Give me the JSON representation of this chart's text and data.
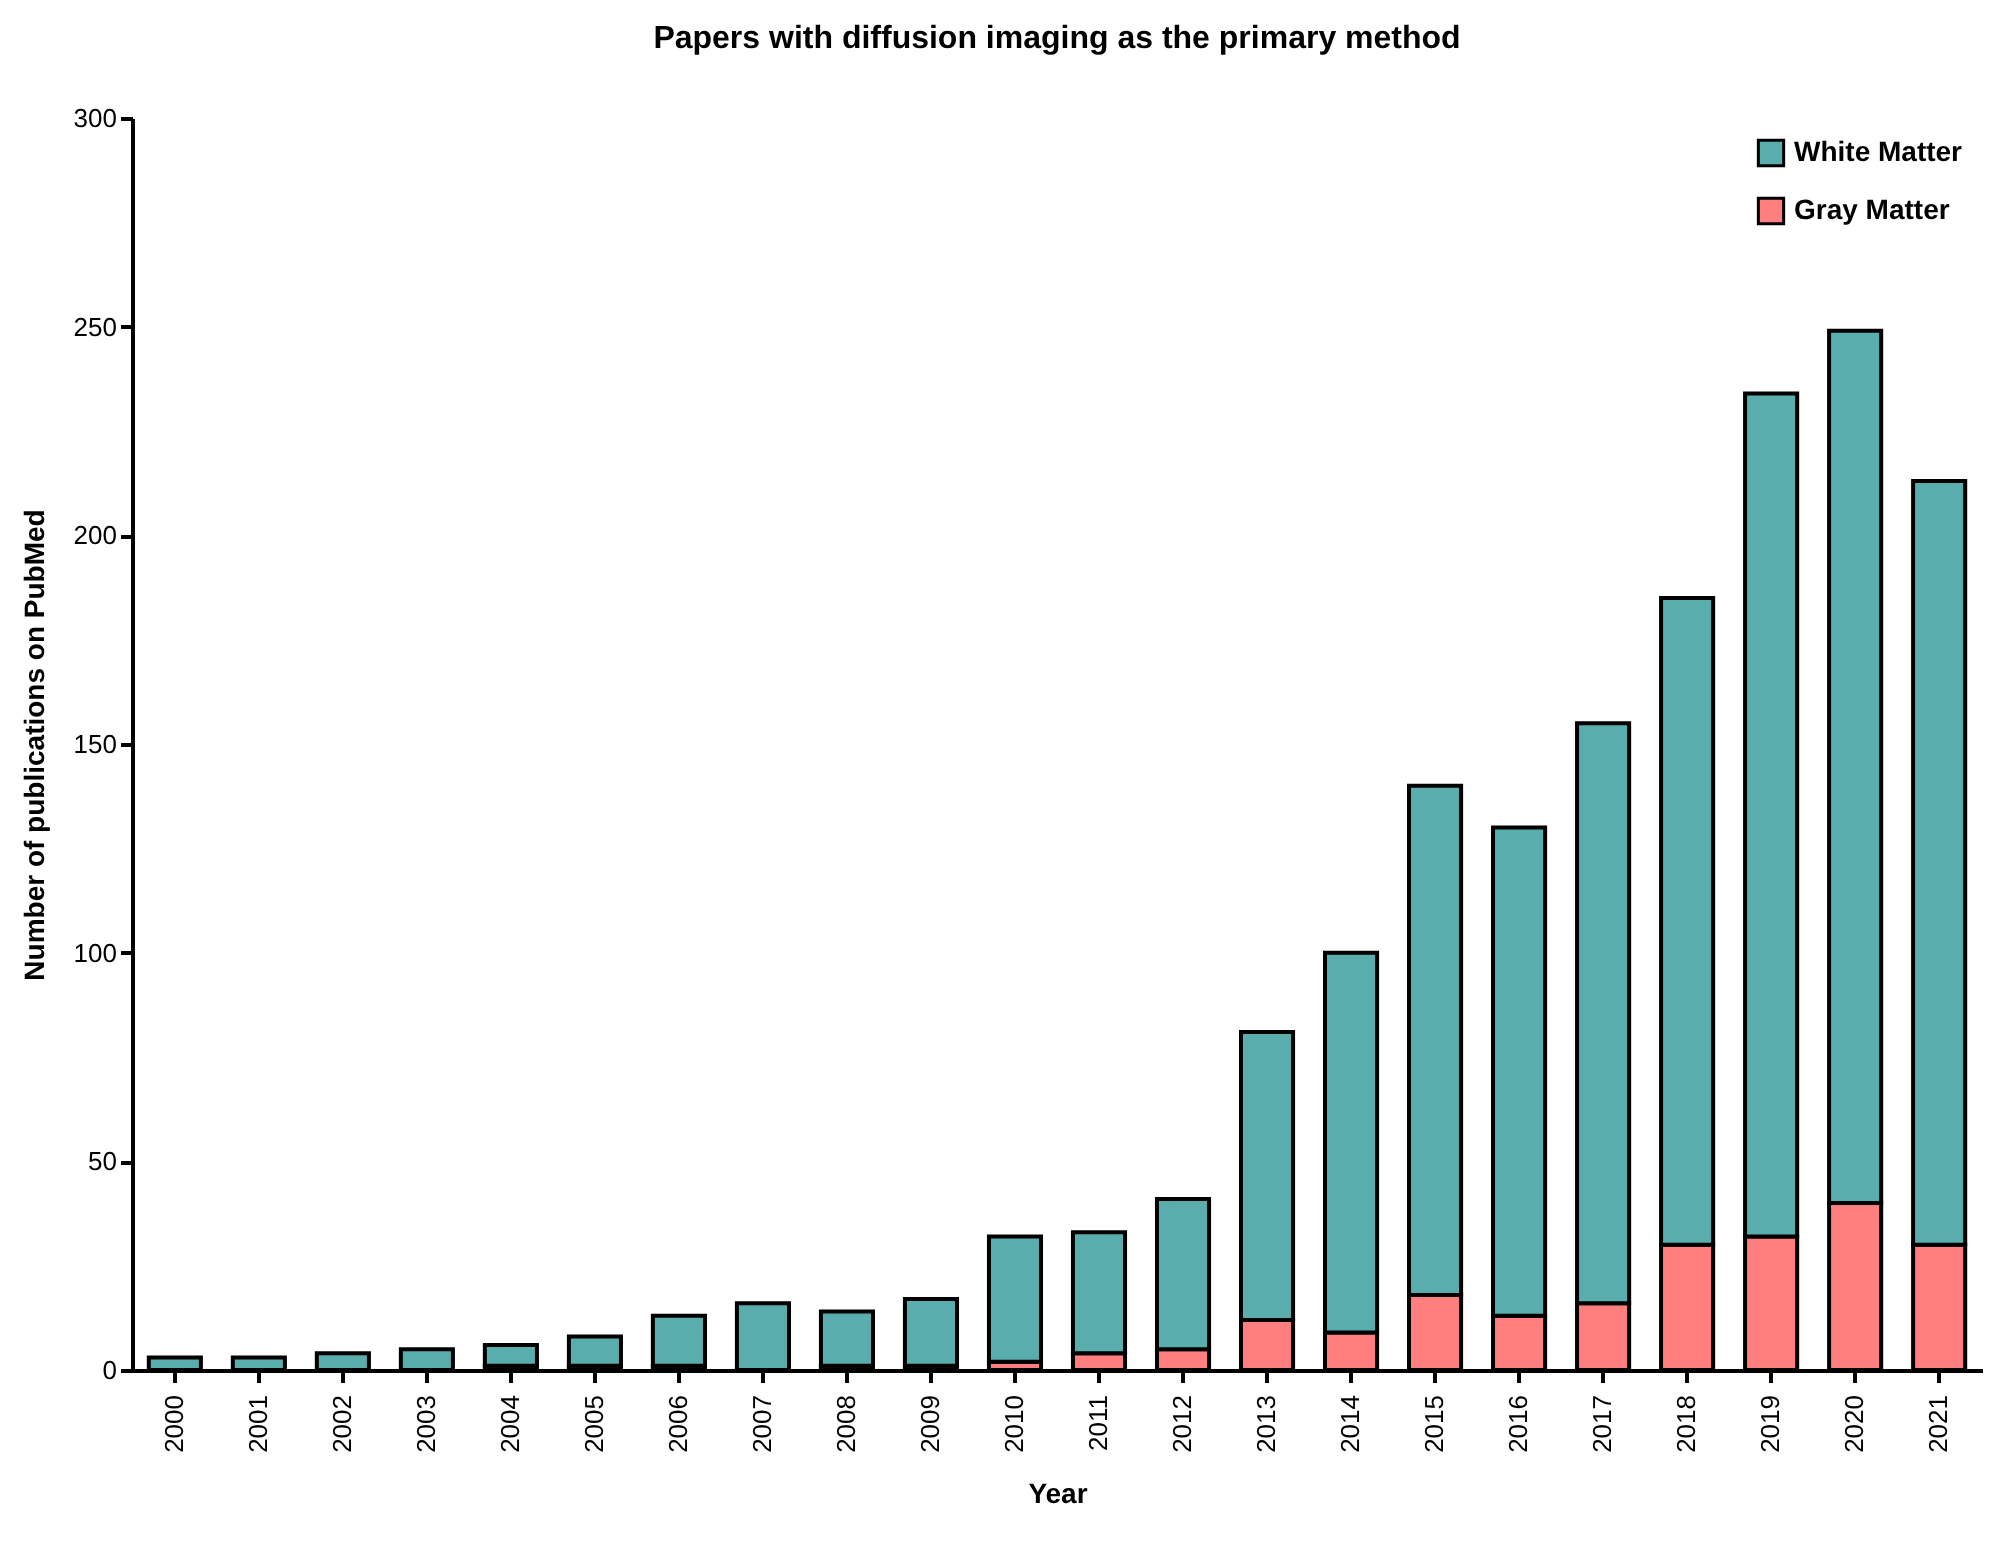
{
  "chart_data": {
    "type": "bar",
    "title": "Papers with diffusion imaging as the primary method",
    "xlabel": "Year",
    "ylabel": "Number of publications on PubMed",
    "categories": [
      "2000",
      "2001",
      "2002",
      "2003",
      "2004",
      "2005",
      "2006",
      "2007",
      "2008",
      "2009",
      "2010",
      "2011",
      "2012",
      "2013",
      "2014",
      "2015",
      "2016",
      "2017",
      "2018",
      "2019",
      "2020",
      "2021"
    ],
    "stacked": true,
    "series": [
      {
        "name": "Gray Matter",
        "color": "#ff7f7f",
        "values": [
          0,
          0,
          0,
          0,
          1,
          1,
          1,
          0,
          1,
          1,
          2,
          4,
          5,
          12,
          9,
          18,
          13,
          16,
          30,
          32,
          40,
          30
        ]
      },
      {
        "name": "White Matter",
        "color": "#5aadad",
        "values": [
          3,
          3,
          4,
          5,
          5,
          7,
          12,
          16,
          13,
          16,
          30,
          29,
          36,
          69,
          91,
          122,
          117,
          139,
          155,
          202,
          209,
          183
        ]
      }
    ],
    "ylim": [
      0,
      300
    ],
    "yticks": [
      0,
      50,
      100,
      150,
      200,
      250,
      300
    ],
    "grid": false,
    "legend": "top right"
  }
}
